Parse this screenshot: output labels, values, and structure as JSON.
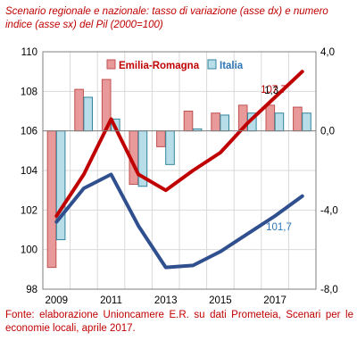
{
  "title": "Scenario regionale e nazionale: tasso di variazione (asse dx) e numero indice (asse sx) del Pil (2000=100)",
  "source": "Fonte: elaborazione Unioncamere E.R. su dati Prometeia, Scenari per le economie locali, aprile 2017.",
  "chart_data": {
    "type": "bar+line",
    "years": [
      2009,
      2010,
      2011,
      2012,
      2013,
      2014,
      2015,
      2016,
      2017,
      2018
    ],
    "x_tick_labels": [
      "2009",
      "2011",
      "2013",
      "2015",
      "2017"
    ],
    "y_left": {
      "min": 98,
      "max": 110,
      "step": 2,
      "tick_labels": [
        "98",
        "100",
        "102",
        "104",
        "106",
        "108",
        "110"
      ]
    },
    "y_right": {
      "min": -8.0,
      "max": 4.0,
      "step": 4.0,
      "tick_labels": [
        "-8,0",
        "-4,0",
        "0,0",
        "4,0"
      ]
    },
    "legend_position": "top",
    "series": [
      {
        "name": "Emilia-Romagna",
        "kind": "bar",
        "axis": "right",
        "color": "#e8999a",
        "edge": "#c0504d",
        "values": [
          -6.9,
          2.1,
          2.6,
          -2.7,
          -0.8,
          1.0,
          0.9,
          1.3,
          1.3,
          1.2
        ]
      },
      {
        "name": "Italia",
        "kind": "bar",
        "axis": "right",
        "color": "#b7dde8",
        "edge": "#31859c",
        "values": [
          -5.5,
          1.7,
          0.6,
          -2.8,
          -1.7,
          0.1,
          0.8,
          0.9,
          0.9,
          0.9
        ]
      },
      {
        "name": "Emilia-Romagna",
        "kind": "line",
        "axis": "left",
        "color": "#c00000",
        "values": [
          101.7,
          103.8,
          106.6,
          103.8,
          103.0,
          104.0,
          104.9,
          106.4,
          107.7,
          109.0
        ]
      },
      {
        "name": "Italia",
        "kind": "line",
        "axis": "left",
        "color": "#2f4f8f",
        "values": [
          101.4,
          103.1,
          103.8,
          101.2,
          99.1,
          99.2,
          99.9,
          100.8,
          101.7,
          102.7
        ]
      }
    ],
    "annotations": [
      {
        "text": "107,7",
        "color": "#c00000"
      },
      {
        "text": "1,3",
        "color": "#000000"
      },
      {
        "text": "101,7",
        "color": "#2e75b6"
      }
    ]
  }
}
